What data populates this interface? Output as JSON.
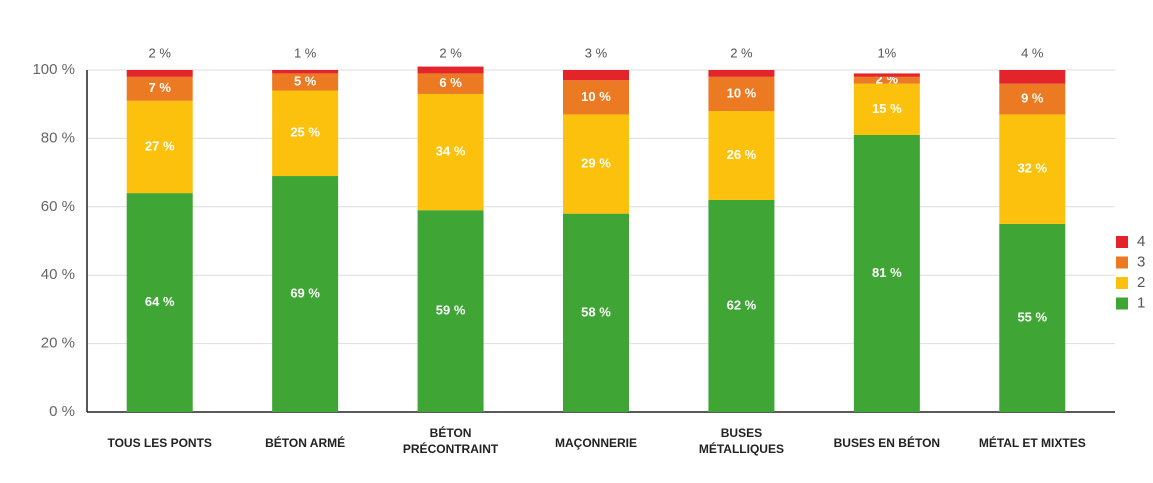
{
  "chart_data": {
    "type": "stacked_bar",
    "categories": [
      "TOUS LES PONTS",
      "BÉTON ARMÉ",
      "BÉTON\nPRÉCONTRAINT",
      "MAÇONNERIE",
      "BUSES\nMÉTALLIQUES",
      "BUSES EN BÉTON",
      "MÉTAL ET MIXTES"
    ],
    "series": [
      {
        "name": "1",
        "color": "#3fa535",
        "values": [
          64,
          69,
          59,
          58,
          62,
          81,
          55
        ],
        "value_labels": [
          "64 %",
          "69 %",
          "59 %",
          "58 %",
          "62 %",
          "81 %",
          "55 %"
        ]
      },
      {
        "name": "2",
        "color": "#fcc10c",
        "values": [
          27,
          25,
          34,
          29,
          26,
          15,
          32
        ],
        "value_labels": [
          "27 %",
          "25 %",
          "34 %",
          "29 %",
          "26 %",
          "15 %",
          "32 %"
        ]
      },
      {
        "name": "3",
        "color": "#ec7a23",
        "values": [
          7,
          5,
          6,
          10,
          10,
          2,
          9
        ],
        "value_labels": [
          "7 %",
          "5 %",
          "6 %",
          "10 %",
          "10 %",
          "2 %",
          "9 %"
        ]
      },
      {
        "name": "4",
        "color": "#e3242b",
        "values": [
          2,
          1,
          2,
          3,
          2,
          1,
          4
        ],
        "value_labels": [
          "2 %",
          "1 %",
          "2 %",
          "3 %",
          "2 %",
          "1%",
          "4 %"
        ]
      }
    ],
    "ylim": [
      0,
      100
    ],
    "yticks": [
      {
        "value": 0,
        "label": "0 %"
      },
      {
        "value": 20,
        "label": "20 %"
      },
      {
        "value": 40,
        "label": "40 %"
      },
      {
        "value": 60,
        "label": "60 %"
      },
      {
        "value": 80,
        "label": "80 %"
      },
      {
        "value": 100,
        "label": "100 %"
      }
    ],
    "grid": true,
    "legend": "right"
  }
}
